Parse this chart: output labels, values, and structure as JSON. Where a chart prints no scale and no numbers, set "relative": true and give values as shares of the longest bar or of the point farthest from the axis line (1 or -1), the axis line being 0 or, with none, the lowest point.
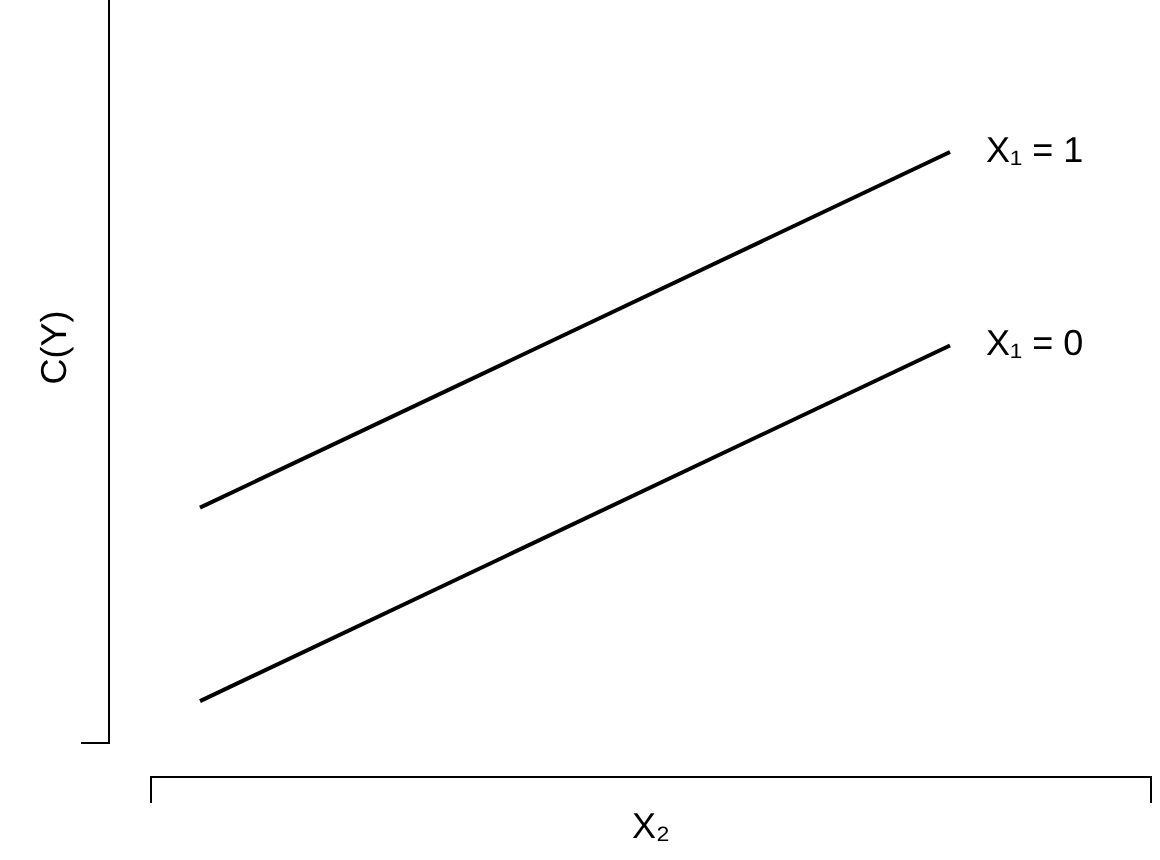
{
  "chart_data": {
    "type": "line",
    "relative": true,
    "xlabel": "X₂",
    "ylabel": "C(Y)",
    "categories": [
      null,
      null
    ],
    "series": [
      {
        "name": "X₁ = 1",
        "color": "#000000",
        "values": [
          0.43,
          1
        ]
      },
      {
        "name": "X₁ = 0",
        "color": "#000000",
        "values": [
          0.12,
          0.69
        ]
      }
    ]
  }
}
